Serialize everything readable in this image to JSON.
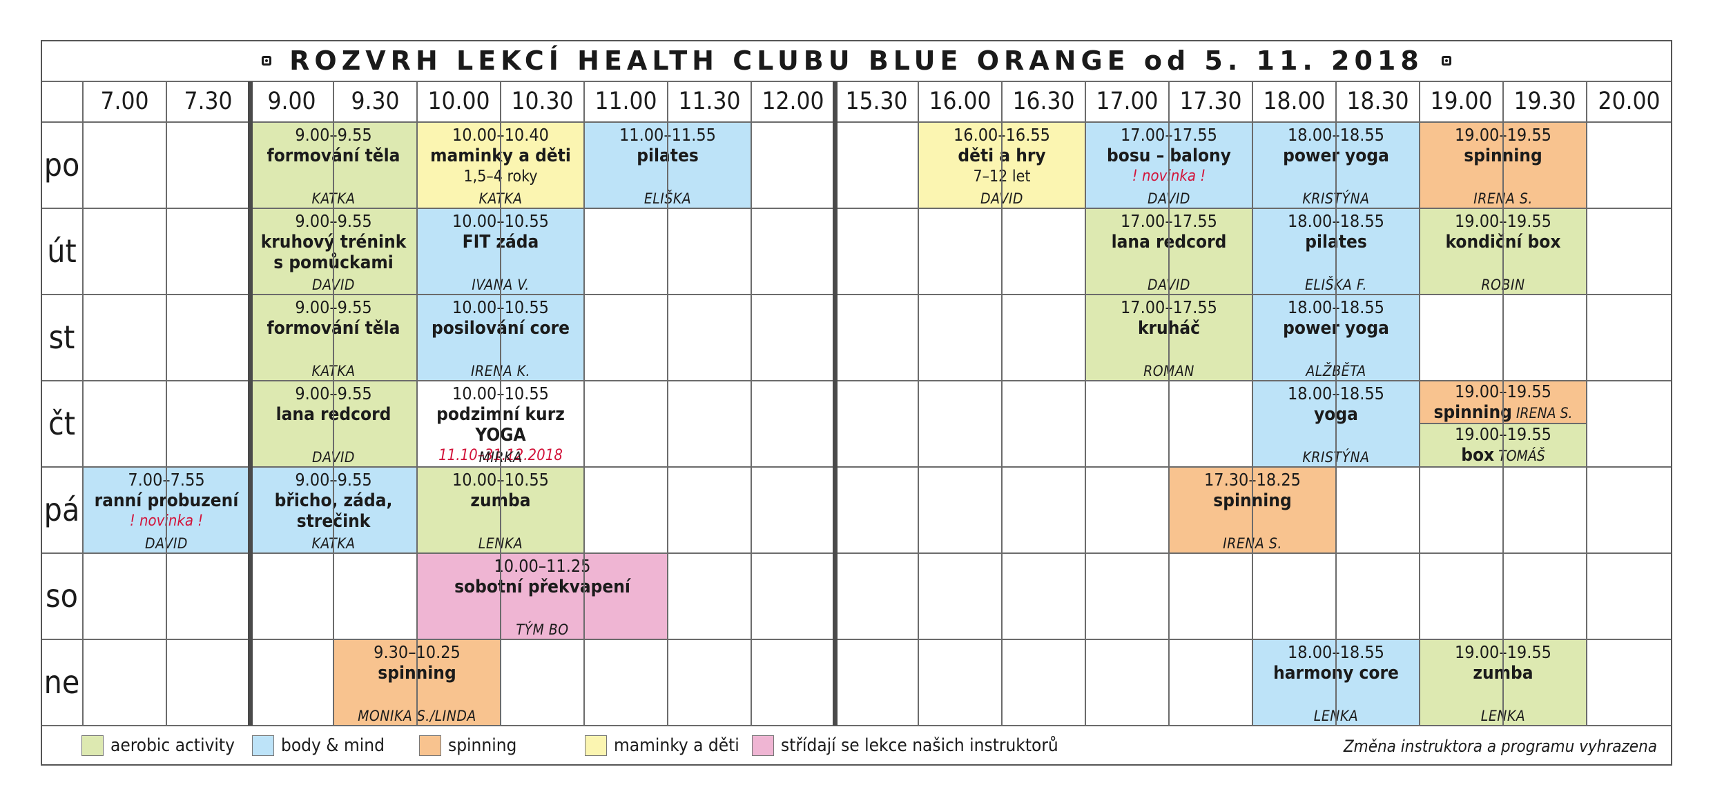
{
  "title": "ROZVRH LEKCÍ HEALTH CLUBU BLUE ORANGE od 5. 11. 2018",
  "colors": {
    "aerobic": "#dde9b1",
    "body_mind": "#bde3f8",
    "spinning": "#f8c38f",
    "maminky": "#fbf5b1",
    "stridaji": "#efb5d3",
    "accent_red": "#d2143a"
  },
  "time_slots": [
    "7.00",
    "7.30",
    "9.00",
    "9.30",
    "10.00",
    "10.30",
    "11.00",
    "11.30",
    "12.00",
    "15.30",
    "16.00",
    "16.30",
    "17.00",
    "17.30",
    "18.00",
    "18.30",
    "19.00",
    "19.30",
    "20.00"
  ],
  "days": [
    "po",
    "út",
    "st",
    "čt",
    "pá",
    "so",
    "ne"
  ],
  "lessons": [
    {
      "day": 0,
      "start": 2,
      "span": 2,
      "color": "green",
      "time": "9.00–9.55",
      "name": [
        "formování těla"
      ],
      "instructor": "KATKA"
    },
    {
      "day": 0,
      "start": 4,
      "span": 2,
      "color": "yellow",
      "time": "10.00–10.40",
      "name": [
        "maminky a děti"
      ],
      "extra": "1,5–4 roky",
      "instructor": "KATKA"
    },
    {
      "day": 0,
      "start": 6,
      "span": 2,
      "color": "blue",
      "time": "11.00–11.55",
      "name": [
        "pilates"
      ],
      "instructor": "ELIŠKA"
    },
    {
      "day": 0,
      "start": 10,
      "span": 2,
      "color": "yellow",
      "time": "16.00–16.55",
      "name": [
        "děti a hry"
      ],
      "extra": "7–12 let",
      "instructor": "DAVID"
    },
    {
      "day": 0,
      "start": 12,
      "span": 2,
      "color": "blue",
      "time": "17.00–17.55",
      "name": [
        "bosu – balony"
      ],
      "red": "! novinka !",
      "instructor": "DAVID"
    },
    {
      "day": 0,
      "start": 14,
      "span": 2,
      "color": "blue",
      "time": "18.00–18.55",
      "name": [
        "power yoga"
      ],
      "instructor": "KRISTÝNA"
    },
    {
      "day": 0,
      "start": 16,
      "span": 2,
      "color": "orange",
      "time": "19.00–19.55",
      "name": [
        "spinning"
      ],
      "instructor": "IRENA S."
    },
    {
      "day": 1,
      "start": 2,
      "span": 2,
      "color": "green",
      "time": "9.00–9.55",
      "name": [
        "kruhový trénink",
        "s pomůckami"
      ],
      "instructor": "DAVID"
    },
    {
      "day": 1,
      "start": 4,
      "span": 2,
      "color": "blue",
      "time": "10.00–10.55",
      "name": [
        "FIT záda"
      ],
      "instructor": "IVANA V."
    },
    {
      "day": 1,
      "start": 12,
      "span": 2,
      "color": "green",
      "time": "17.00–17.55",
      "name": [
        "lana redcord"
      ],
      "instructor": "DAVID"
    },
    {
      "day": 1,
      "start": 14,
      "span": 2,
      "color": "blue",
      "time": "18.00–18.55",
      "name": [
        "pilates"
      ],
      "instructor": "ELIŠKA F."
    },
    {
      "day": 1,
      "start": 16,
      "span": 2,
      "color": "green",
      "time": "19.00–19.55",
      "name": [
        "kondiční box"
      ],
      "instructor": "ROBIN"
    },
    {
      "day": 2,
      "start": 2,
      "span": 2,
      "color": "green",
      "time": "9.00–9.55",
      "name": [
        "formování těla"
      ],
      "instructor": "KATKA"
    },
    {
      "day": 2,
      "start": 4,
      "span": 2,
      "color": "blue",
      "time": "10.00–10.55",
      "name": [
        "posilování core"
      ],
      "instructor": "IRENA K."
    },
    {
      "day": 2,
      "start": 12,
      "span": 2,
      "color": "green",
      "time": "17.00–17.55",
      "name": [
        "kruháč"
      ],
      "instructor": "ROMAN"
    },
    {
      "day": 2,
      "start": 14,
      "span": 2,
      "color": "blue",
      "time": "18.00–18.55",
      "name": [
        "power yoga"
      ],
      "instructor": "ALŽBĚTA"
    },
    {
      "day": 3,
      "start": 2,
      "span": 2,
      "color": "green",
      "time": "9.00–9.55",
      "name": [
        "lana redcord"
      ],
      "instructor": "DAVID"
    },
    {
      "day": 3,
      "start": 4,
      "span": 2,
      "color": "white",
      "time": "10.00–10.55",
      "name": [
        "podzimní kurz YOGA"
      ],
      "red": "11.10–31.12.2018",
      "instructor": "MIRKA"
    },
    {
      "day": 3,
      "start": 14,
      "span": 2,
      "color": "blue",
      "time": "18.00–18.55",
      "name": [
        "yoga"
      ],
      "instructor": "KRISTÝNA"
    },
    {
      "day": 3,
      "start": 16,
      "span": 2,
      "color": "orange",
      "half": "top",
      "time": "19.00–19.55",
      "name": [
        "spinning"
      ],
      "inline_instructor": "IRENA S."
    },
    {
      "day": 3,
      "start": 16,
      "span": 2,
      "color": "green",
      "half": "bottom",
      "time": "19.00–19.55",
      "name": [
        "box"
      ],
      "inline_instructor": "TOMÁŠ"
    },
    {
      "day": 4,
      "start": 0,
      "span": 2,
      "color": "blue",
      "time": "7.00–7.55",
      "name": [
        "ranní probuzení"
      ],
      "red": "! novinka !",
      "instructor": "DAVID"
    },
    {
      "day": 4,
      "start": 2,
      "span": 2,
      "color": "blue",
      "time": "9.00–9.55",
      "name": [
        "břicho, záda,",
        "strečink"
      ],
      "instructor": "KATKA"
    },
    {
      "day": 4,
      "start": 4,
      "span": 2,
      "color": "green",
      "time": "10.00–10.55",
      "name": [
        "zumba"
      ],
      "instructor": "LENKA"
    },
    {
      "day": 4,
      "start": 13,
      "span": 2,
      "color": "orange",
      "time": "17.30–18.25",
      "name": [
        "spinning"
      ],
      "instructor": "IRENA S."
    },
    {
      "day": 5,
      "start": 4,
      "span": 3,
      "color": "pink",
      "time": "10.00–11.25",
      "name": [
        "sobotní překvapení"
      ],
      "instructor": "TÝM BO"
    },
    {
      "day": 6,
      "start": 3,
      "span": 2,
      "color": "orange",
      "time": "9.30–10.25",
      "name": [
        "spinning"
      ],
      "instructor": "MONIKA S./LINDA"
    },
    {
      "day": 6,
      "start": 14,
      "span": 2,
      "color": "blue",
      "time": "18.00–18.55",
      "name": [
        "harmony core"
      ],
      "instructor": "LENKA"
    },
    {
      "day": 6,
      "start": 16,
      "span": 2,
      "color": "green",
      "time": "19.00–19.55",
      "name": [
        "zumba"
      ],
      "instructor": "LENKA"
    }
  ],
  "legend": [
    {
      "color": "green",
      "label": "aerobic activity"
    },
    {
      "color": "blue",
      "label": "body & mind"
    },
    {
      "color": "orange",
      "label": "spinning"
    },
    {
      "color": "yellow",
      "label": "maminky a děti"
    },
    {
      "color": "pink",
      "label": "střídají se lekce našich instruktorů"
    }
  ],
  "note": "Změna instruktora a programu vyhrazena"
}
